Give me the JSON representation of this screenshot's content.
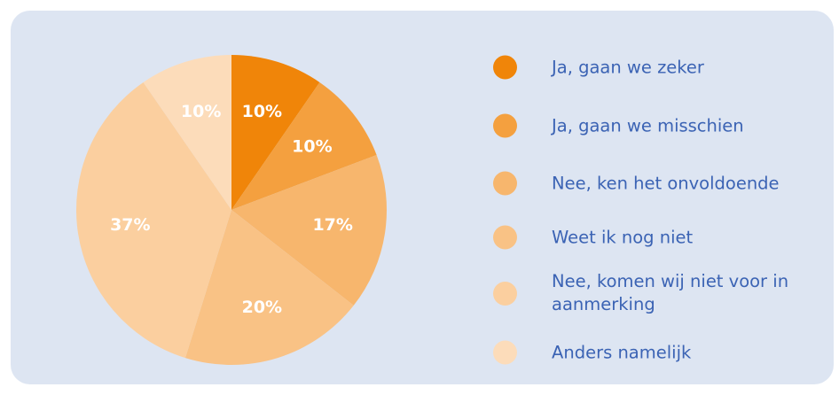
{
  "chart_data": {
    "type": "pie",
    "categories": [
      "Ja, gaan we zeker",
      "Ja, gaan we misschien",
      "Nee, ken het onvoldoende",
      "Weet ik nog niet",
      "Nee, komen wij niet voor in aanmerking",
      "Anders namelijk"
    ],
    "values": [
      10,
      10,
      17,
      20,
      37,
      10
    ],
    "value_labels": [
      "10%",
      "10%",
      "17%",
      "20%",
      "37%",
      "10%"
    ],
    "colors": [
      "#f08509",
      "#f4a03f",
      "#f7b66d",
      "#f9c285",
      "#fbcf9f",
      "#fcdcba"
    ],
    "legend": "right"
  }
}
